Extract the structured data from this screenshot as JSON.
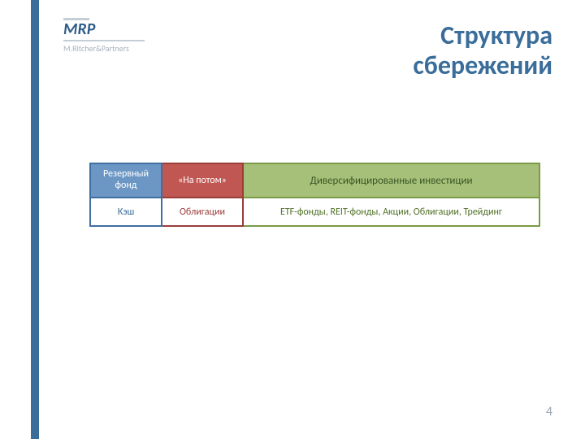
{
  "logo": {
    "short": "MRP",
    "full": "M.Ritcher&Partners"
  },
  "title": {
    "line1": "Структура",
    "line2": "сбережений"
  },
  "diagram": {
    "type": "table",
    "columns": [
      {
        "widthPx": 90,
        "headerBg": "#6c97c5",
        "headerBorder": "#3f6ea2",
        "headerText": "#ffffff",
        "bodyBorder": "#3f6ea2",
        "bodyText": "#3a6d9a"
      },
      {
        "widthPx": 100,
        "headerBg": "#c05752",
        "headerBorder": "#9a3e3a",
        "headerText": "#ffffff",
        "bodyBorder": "#9a3e3a",
        "bodyText": "#9a3e3a"
      },
      {
        "widthPx": 365,
        "headerBg": "#a7c079",
        "headerBorder": "#7a9a46",
        "headerText": "#385624",
        "bodyBorder": "#7a9a46",
        "bodyText": "#507025"
      }
    ],
    "header": {
      "col1": "Резервный фонд",
      "col2": "«На потом»",
      "col3": "Диверсифицированные инвестиции"
    },
    "body": {
      "col1": "Кэш",
      "col2": "Облигации",
      "col3": "ETF-фонды, REIT-фонды, Акции, Облигации, Трейдинг"
    },
    "headerFontSize": 12,
    "bodyFontSize": 12,
    "backgroundColor": "#ffffff"
  },
  "accent": {
    "stripeColor": "#3a6d9a",
    "titleColor": "#3a6d9a"
  },
  "pageNumber": "4"
}
